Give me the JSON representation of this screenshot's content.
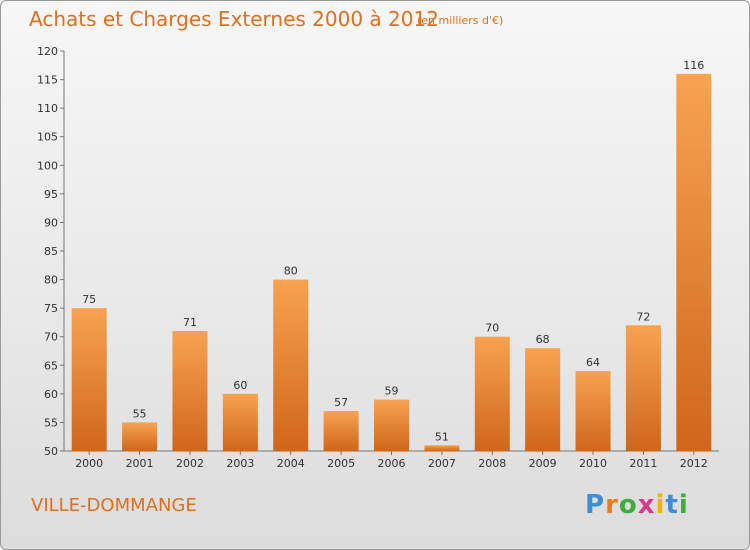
{
  "header": {
    "title": "Achats et Charges Externes 2000 à 2012",
    "subtitle": "(en milliers d'€)"
  },
  "footer": {
    "commune": "VILLE-DOMMANGE",
    "logo": {
      "letters": [
        "P",
        "r",
        "o",
        "x",
        "i",
        "t",
        "i"
      ],
      "colors": [
        "#3a8fd8",
        "#f07a1a",
        "#3cae3c",
        "#d93a8a",
        "#f2b400",
        "#3a8fd8",
        "#3cae3c"
      ]
    }
  },
  "chart_data": {
    "type": "bar",
    "categories": [
      "2000",
      "2001",
      "2002",
      "2003",
      "2004",
      "2005",
      "2006",
      "2007",
      "2008",
      "2009",
      "2010",
      "2011",
      "2012"
    ],
    "values": [
      75,
      55,
      71,
      60,
      80,
      57,
      59,
      51,
      70,
      68,
      64,
      72,
      116
    ],
    "ylim": [
      50,
      120
    ],
    "yticks": [
      50,
      55,
      60,
      65,
      70,
      75,
      80,
      85,
      90,
      95,
      100,
      105,
      110,
      115,
      120
    ],
    "grid": false,
    "bar_color": "#f0892c"
  }
}
